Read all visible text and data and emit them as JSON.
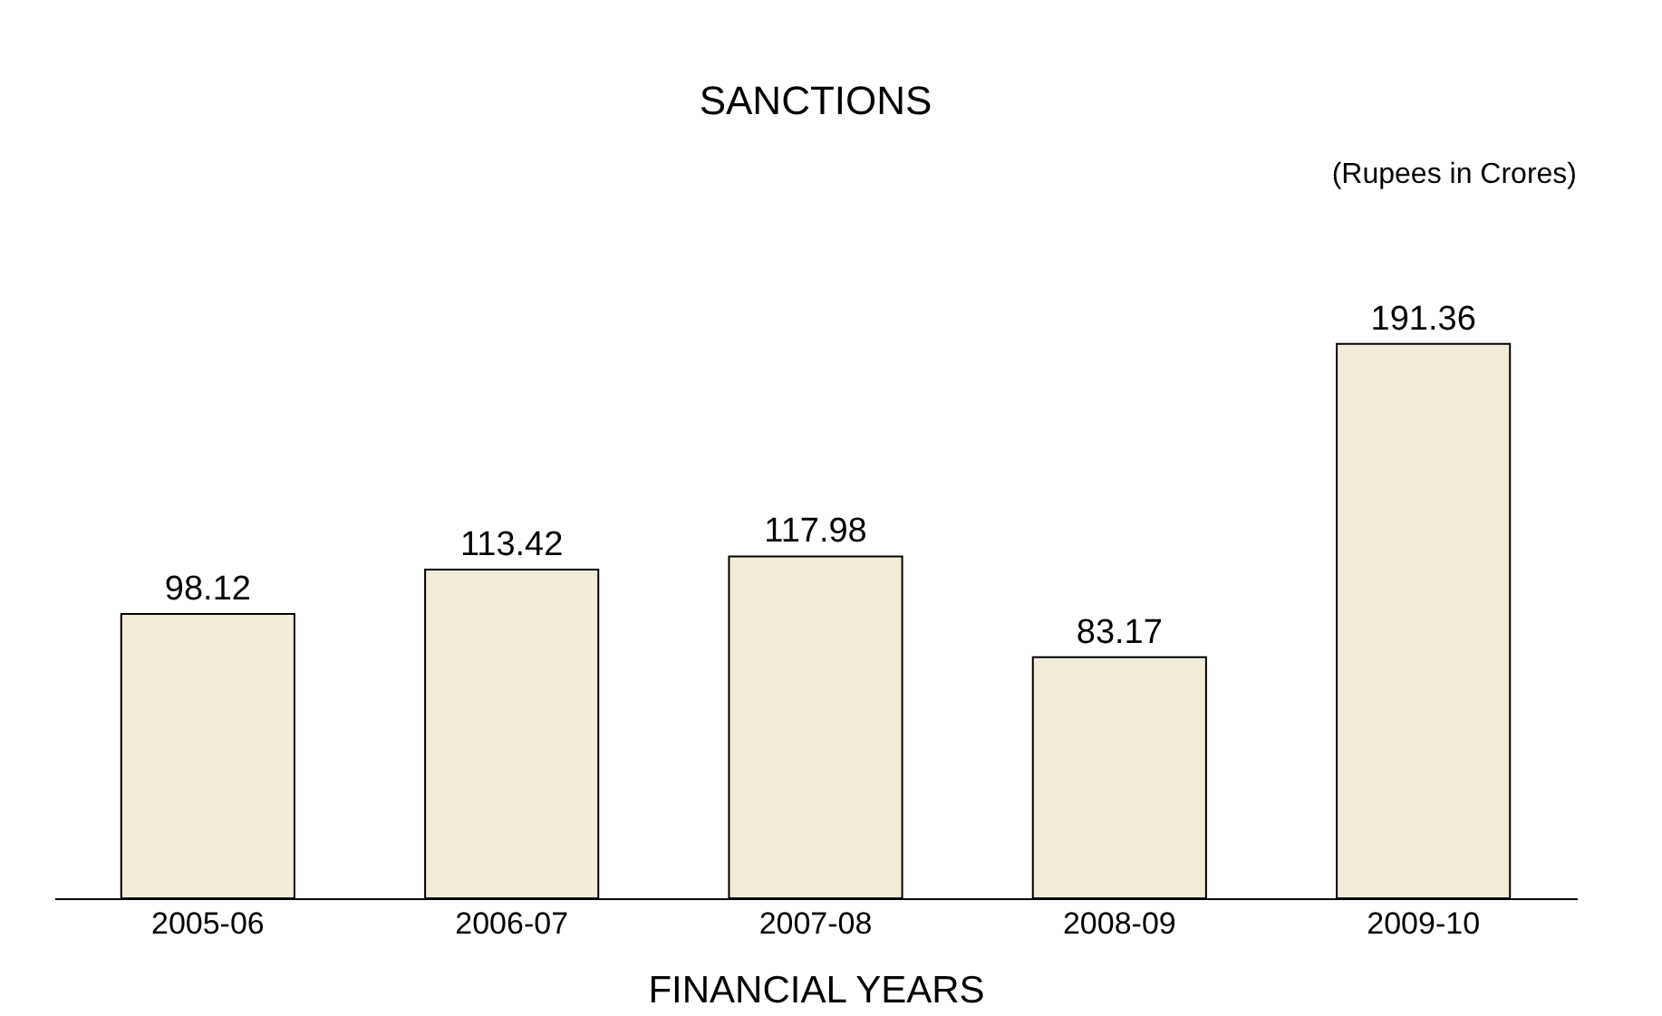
{
  "chart_data": {
    "type": "bar",
    "title": "SANCTIONS",
    "xlabel": "FINANCIAL YEARS",
    "annotations": [
      "(Rupees in Crores)"
    ],
    "categories": [
      "2005-06",
      "2006-07",
      "2007-08",
      "2008-09",
      "2009-10"
    ],
    "values": [
      98.12,
      113.42,
      117.98,
      83.17,
      191.36
    ],
    "color": "#f2eddb",
    "data_labels": true,
    "grid": false
  }
}
